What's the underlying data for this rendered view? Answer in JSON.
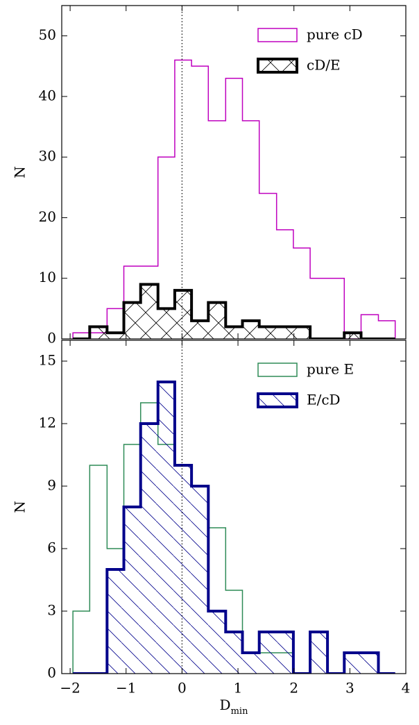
{
  "chart_data": [
    {
      "type": "histogram",
      "ylabel": "N",
      "bins": [
        -1.95,
        -1.65,
        -1.34,
        -1.04,
        -0.74,
        -0.43,
        -0.13,
        0.17,
        0.47,
        0.78,
        1.08,
        1.38,
        1.69,
        1.99,
        2.29,
        2.6,
        2.9,
        3.2,
        3.51,
        3.81
      ],
      "series": [
        {
          "name": "pure cD",
          "color": "#bf00bf",
          "linewidth": 1.5,
          "hatch": null,
          "values": [
            1,
            1,
            5,
            12,
            12,
            30,
            46,
            45,
            36,
            43,
            36,
            24,
            18,
            15,
            10,
            10,
            0,
            4,
            3
          ]
        },
        {
          "name": "cD/E",
          "color": "#000000",
          "linewidth": 4,
          "hatch": "x",
          "values": [
            0,
            2,
            1,
            6,
            9,
            5,
            8,
            3,
            6,
            2,
            3,
            2,
            2,
            2,
            0,
            0,
            1,
            0,
            0
          ]
        }
      ],
      "xlim": [
        -2.15,
        4
      ],
      "xticks": [
        -2,
        -1,
        0,
        1,
        2,
        3,
        4
      ],
      "ylim": [
        0,
        55
      ],
      "yticks": [
        0,
        10,
        20,
        30,
        40,
        50
      ],
      "vline": 0,
      "legend": "upper right"
    },
    {
      "type": "histogram",
      "ylabel": "N",
      "xlabel": "D",
      "xlabel_sub": "min",
      "bins": [
        -1.95,
        -1.65,
        -1.34,
        -1.04,
        -0.74,
        -0.43,
        -0.13,
        0.17,
        0.47,
        0.78,
        1.08,
        1.38,
        1.69,
        1.99,
        2.29,
        2.6,
        2.9,
        3.2,
        3.51,
        3.81
      ],
      "series": [
        {
          "name": "pure E",
          "color": "#2e8b57",
          "linewidth": 1.5,
          "hatch": null,
          "values": [
            3,
            10,
            6,
            11,
            13,
            11,
            10,
            9,
            7,
            4,
            1,
            1,
            1,
            0,
            2,
            0,
            1,
            1,
            0
          ]
        },
        {
          "name": "E/cD",
          "color": "#00008b",
          "linewidth": 4,
          "hatch": "\\",
          "values": [
            0,
            0,
            5,
            8,
            12,
            14,
            10,
            9,
            3,
            2,
            1,
            2,
            2,
            0,
            2,
            0,
            1,
            1,
            0
          ]
        }
      ],
      "xlim": [
        -2.15,
        4
      ],
      "xticks": [
        {
          "value": -2,
          "label": "−2"
        },
        {
          "value": -1,
          "label": "−1"
        },
        0,
        1,
        2,
        3,
        4
      ],
      "ylim": [
        0,
        16
      ],
      "yticks": [
        0,
        3,
        6,
        9,
        12,
        15
      ],
      "vline": 0,
      "legend": "upper right"
    }
  ]
}
